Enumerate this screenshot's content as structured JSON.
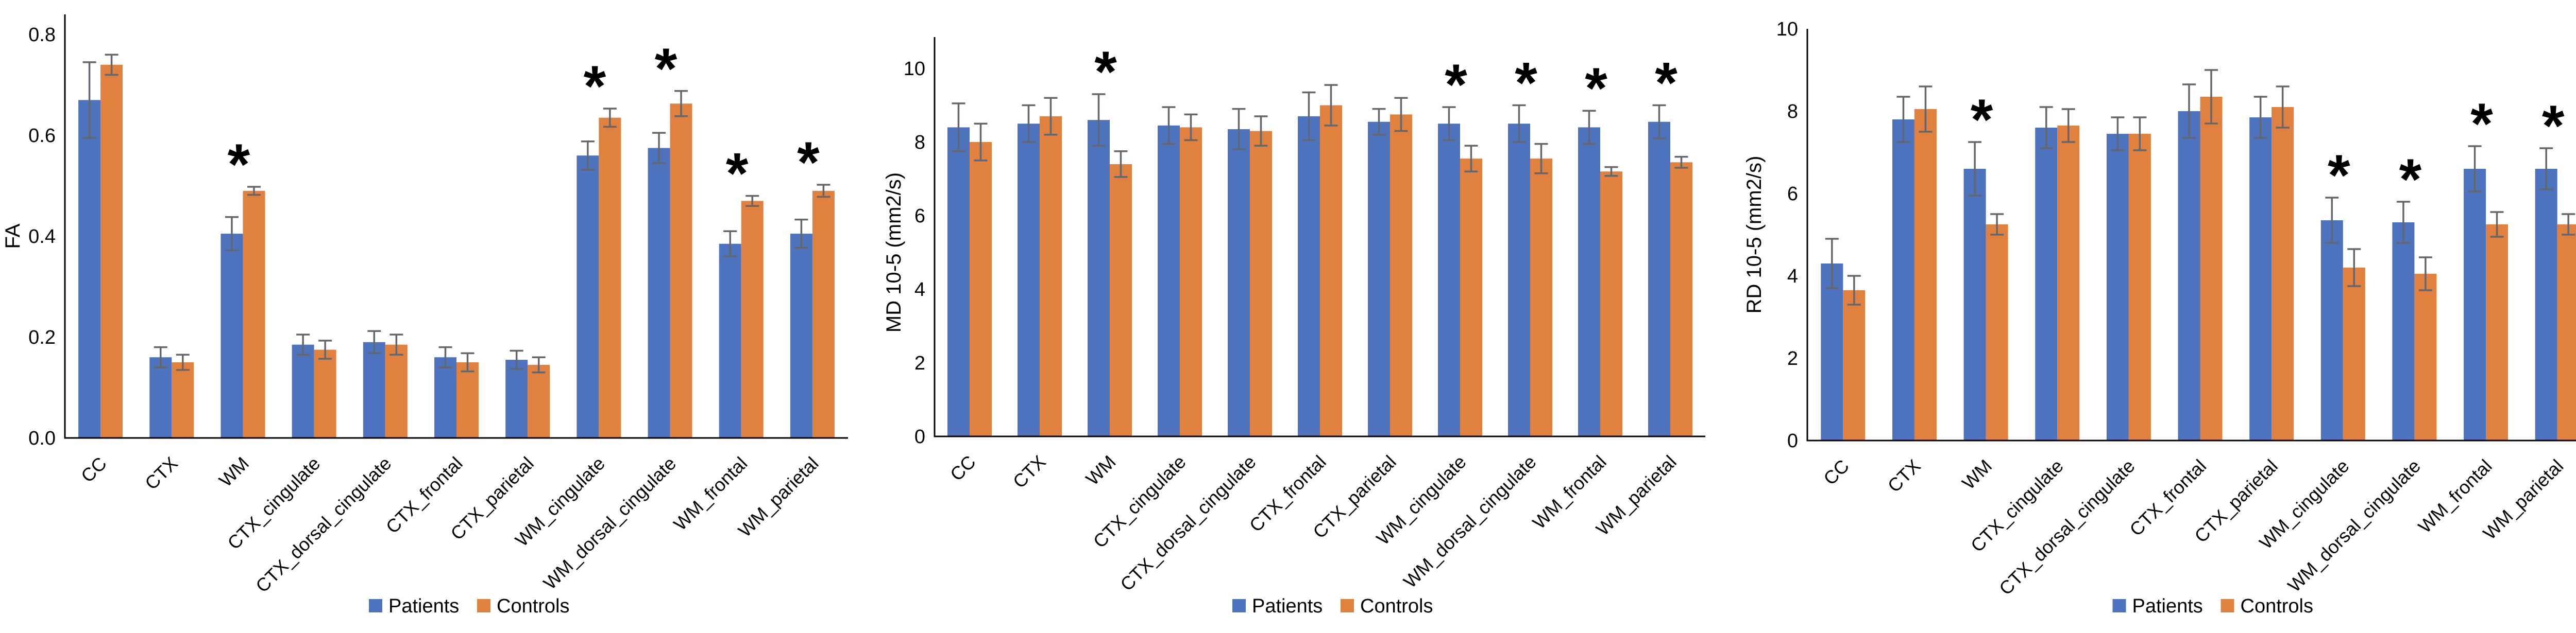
{
  "figure": {
    "legend": {
      "patients_label": "Patients",
      "controls_label": "Controls"
    },
    "colors": {
      "patients": "#4D73BF",
      "controls": "#E08140",
      "error_bar": "#63676D",
      "axis": "#000000",
      "sig_marker": "#000000"
    },
    "sig_symbol": "*"
  },
  "chart_data": [
    {
      "type": "bar",
      "title": "",
      "xlabel": "",
      "ylabel": "FA",
      "ylim": [
        0,
        0.8
      ],
      "yticks": [
        0,
        0.2,
        0.4,
        0.6,
        0.8
      ],
      "ytick_labels": [
        "0.0",
        "0.2",
        "0.4",
        "0.6",
        "0.8"
      ],
      "grid": false,
      "legend_position": "bottom",
      "categories": [
        "CC",
        "CTX",
        "WM",
        "CTX_cingulate",
        "CTX_dorsal_cingulate",
        "CTX_frontal",
        "CTX_parietal",
        "WM_cingulate",
        "WM_dorsal_cingulate",
        "WM_frontal",
        "WM_parietal"
      ],
      "series": [
        {
          "name": "Patients",
          "values": [
            0.67,
            0.16,
            0.405,
            0.185,
            0.19,
            0.16,
            0.155,
            0.56,
            0.575,
            0.385,
            0.405
          ],
          "errors": [
            0.075,
            0.02,
            0.033,
            0.02,
            0.022,
            0.02,
            0.018,
            0.028,
            0.03,
            0.025,
            0.028
          ]
        },
        {
          "name": "Controls",
          "values": [
            0.74,
            0.15,
            0.49,
            0.175,
            0.185,
            0.15,
            0.145,
            0.635,
            0.663,
            0.47,
            0.49
          ],
          "errors": [
            0.02,
            0.015,
            0.008,
            0.018,
            0.02,
            0.018,
            0.015,
            0.018,
            0.025,
            0.01,
            0.012
          ]
        }
      ],
      "significant_categories": [
        "WM",
        "WM_cingulate",
        "WM_dorsal_cingulate",
        "WM_frontal",
        "WM_parietal"
      ]
    },
    {
      "type": "bar",
      "title": "",
      "xlabel": "",
      "ylabel": "MD 10-5 (mm2/s)",
      "ylim": [
        0,
        10
      ],
      "yticks": [
        0,
        2,
        4,
        6,
        8,
        10
      ],
      "ytick_labels": [
        "0",
        "2",
        "4",
        "6",
        "8",
        "10"
      ],
      "grid": false,
      "legend_position": "bottom",
      "categories": [
        "CC",
        "CTX",
        "WM",
        "CTX_cingulate",
        "CTX_dorsal_cingulate",
        "CTX_frontal",
        "CTX_parietal",
        "WM_cingulate",
        "WM_dorsal_cingulate",
        "WM_frontal",
        "WM_parietal"
      ],
      "series": [
        {
          "name": "Patients",
          "values": [
            8.4,
            8.5,
            8.6,
            8.45,
            8.35,
            8.7,
            8.55,
            8.5,
            8.5,
            8.4,
            8.55
          ],
          "errors": [
            0.65,
            0.5,
            0.7,
            0.5,
            0.55,
            0.65,
            0.35,
            0.45,
            0.5,
            0.45,
            0.45
          ]
        },
        {
          "name": "Controls",
          "values": [
            8.0,
            8.7,
            7.4,
            8.4,
            8.3,
            9.0,
            8.75,
            7.55,
            7.55,
            7.2,
            7.45
          ],
          "errors": [
            0.5,
            0.5,
            0.35,
            0.35,
            0.4,
            0.55,
            0.45,
            0.35,
            0.4,
            0.12,
            0.15
          ]
        }
      ],
      "significant_categories": [
        "WM",
        "WM_cingulate",
        "WM_dorsal_cingulate",
        "WM_frontal",
        "WM_parietal"
      ]
    },
    {
      "type": "bar",
      "title": "",
      "xlabel": "",
      "ylabel": "RD 10-5 (mm2/s)",
      "ylim": [
        0,
        10
      ],
      "yticks": [
        0,
        2,
        4,
        6,
        8,
        10
      ],
      "ytick_labels": [
        "0",
        "2",
        "4",
        "6",
        "8",
        "10"
      ],
      "grid": false,
      "legend_position": "bottom",
      "categories": [
        "CC",
        "CTX",
        "WM",
        "CTX_cingulate",
        "CTX_dorsal_cingulate",
        "CTX_frontal",
        "CTX_parietal",
        "WM_cingulate",
        "WM_dorsal_cingulate",
        "WM_frontal",
        "WM_parietal"
      ],
      "series": [
        {
          "name": "Patients",
          "values": [
            4.3,
            7.8,
            6.6,
            7.6,
            7.45,
            8.0,
            7.85,
            5.35,
            5.3,
            6.6,
            6.6
          ],
          "errors": [
            0.6,
            0.55,
            0.65,
            0.5,
            0.4,
            0.65,
            0.5,
            0.55,
            0.5,
            0.55,
            0.5
          ]
        },
        {
          "name": "Controls",
          "values": [
            3.65,
            8.05,
            5.25,
            7.65,
            7.45,
            8.35,
            8.1,
            4.2,
            4.05,
            5.25,
            5.25
          ],
          "errors": [
            0.35,
            0.55,
            0.25,
            0.4,
            0.4,
            0.65,
            0.5,
            0.45,
            0.4,
            0.3,
            0.25
          ]
        }
      ],
      "significant_categories": [
        "WM",
        "WM_cingulate",
        "WM_dorsal_cingulate",
        "WM_frontal",
        "WM_parietal"
      ]
    }
  ]
}
